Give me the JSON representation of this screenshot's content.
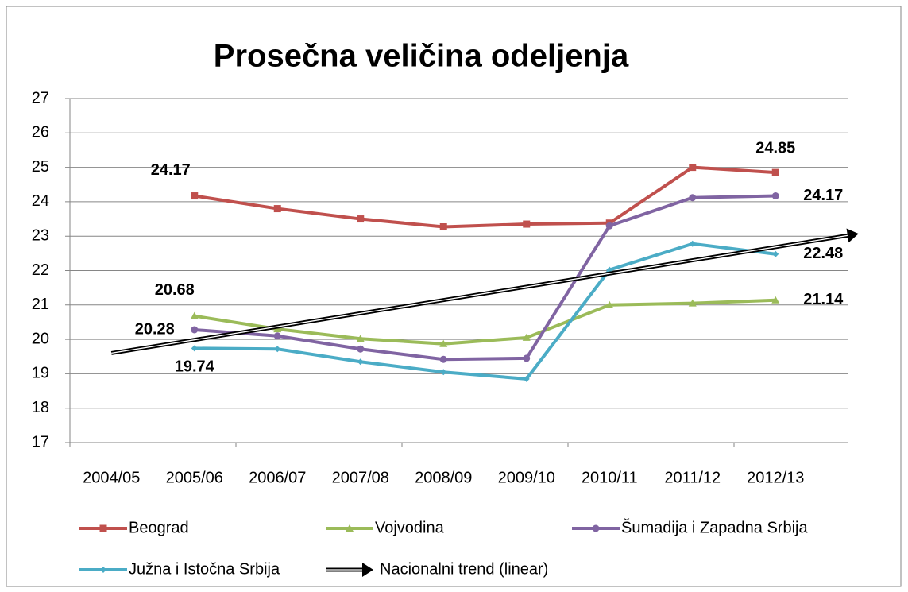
{
  "chart_data": {
    "type": "line",
    "title": "Prosečna veličina odeljenja",
    "categories": [
      "2004/05",
      "2005/06",
      "2006/07",
      "2007/08",
      "2008/09",
      "2009/10",
      "2010/11",
      "2011/12",
      "2012/13",
      null
    ],
    "ylim": [
      17,
      27
    ],
    "yticks": [
      17,
      18,
      19,
      20,
      21,
      22,
      23,
      24,
      25,
      26,
      27
    ],
    "grid": true,
    "legend": "bottom",
    "series": [
      {
        "name": "Beograd",
        "color": "#c0504d",
        "marker": "square",
        "values": [
          null,
          24.17,
          23.8,
          23.5,
          23.27,
          23.35,
          23.38,
          25.0,
          24.85,
          null
        ],
        "value_labels": [
          null,
          "24.17",
          null,
          null,
          null,
          null,
          null,
          null,
          "24.85",
          null
        ]
      },
      {
        "name": "Vojvodina",
        "color": "#9bbb59",
        "marker": "triangle",
        "values": [
          null,
          20.68,
          20.3,
          20.02,
          19.87,
          20.05,
          21.0,
          21.05,
          21.14,
          null
        ],
        "value_labels": [
          null,
          "20.68",
          null,
          null,
          null,
          null,
          null,
          null,
          "21.14",
          null
        ]
      },
      {
        "name": "Šumadija i Zapadna Srbija",
        "color": "#8064a2",
        "marker": "circle",
        "values": [
          null,
          20.28,
          20.1,
          19.72,
          19.42,
          19.45,
          23.3,
          24.12,
          24.17,
          null
        ],
        "value_labels": [
          null,
          "20.28",
          null,
          null,
          null,
          null,
          null,
          null,
          "24.17",
          null
        ]
      },
      {
        "name": "Južna i Istočna Srbija",
        "color": "#4bacc6",
        "marker": "diamond",
        "values": [
          null,
          19.74,
          19.72,
          19.35,
          19.05,
          18.85,
          22.02,
          22.78,
          22.48,
          null
        ],
        "value_labels": [
          null,
          "19.74",
          null,
          null,
          null,
          null,
          null,
          null,
          "22.48",
          null
        ]
      },
      {
        "name": "Nacionalni trend (linear)",
        "color": "#000000",
        "marker": "arrow",
        "values": [
          19.6,
          19.99,
          20.37,
          20.76,
          21.14,
          21.53,
          21.91,
          22.3,
          22.68,
          23.07
        ]
      }
    ]
  }
}
